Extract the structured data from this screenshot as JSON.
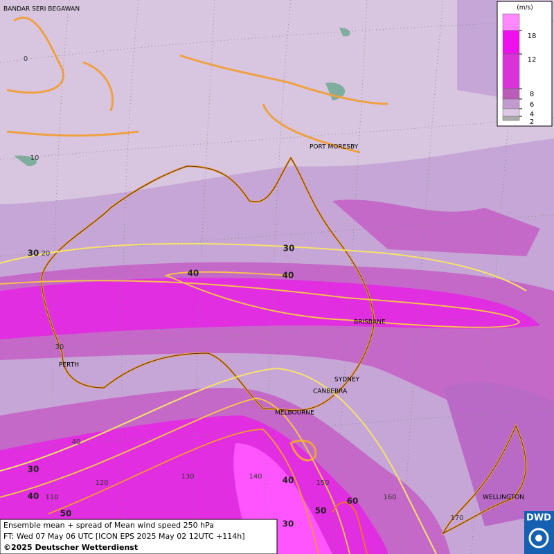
{
  "map": {
    "cities": [
      "BANDAR SERI BEGAWAN",
      "PORT MORESBY",
      "PERTH",
      "BRISBANE",
      "SYDNEY",
      "CANBERRA",
      "MELBOURNE",
      "WELLINGTON"
    ],
    "grid_labels": [
      0,
      10,
      20,
      30,
      40,
      110,
      120,
      130,
      140,
      150,
      160,
      170
    ],
    "contour_labels": [
      30,
      30,
      40,
      40,
      30,
      40,
      50,
      40,
      50,
      60,
      30
    ]
  },
  "legend": {
    "unit": "(m/s)",
    "ticks": [
      18,
      12,
      8,
      6,
      4,
      2
    ]
  },
  "footer": {
    "line1": "Ensemble mean + spread of Mean wind speed 250 hPa",
    "line2": "FT: Wed 07 May 06 UTC [ICON EPS 2025 May 02 12UTC +114h]",
    "copyright": "©2025 Deutscher Wetterdienst"
  },
  "logo": "DWD"
}
